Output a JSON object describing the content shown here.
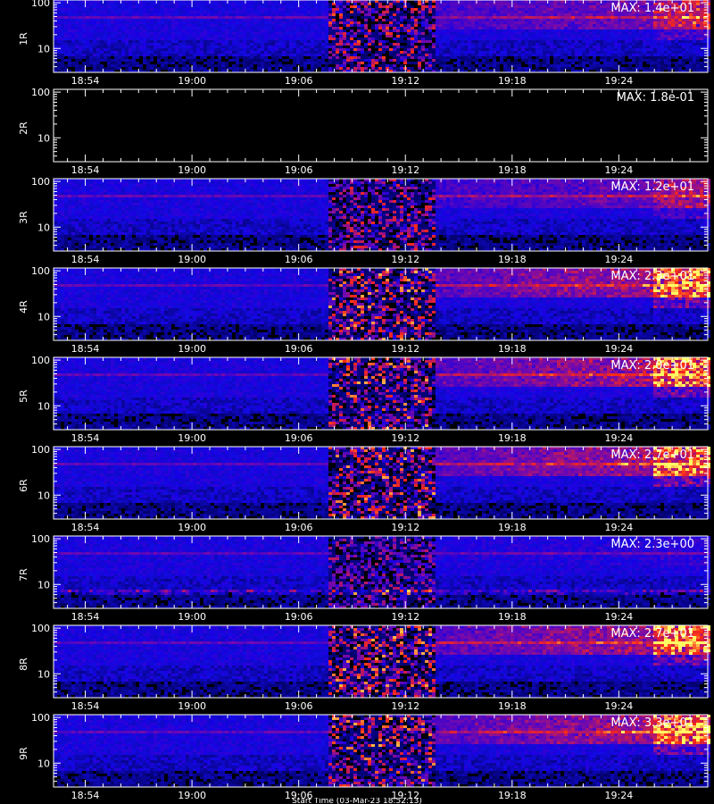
{
  "footer_text": "Start Time (03-Mar-23 18:52:13)",
  "chart_data": {
    "type": "heatmap",
    "x_range": [
      "18:52",
      "19:29"
    ],
    "x_ticks": [
      "18:54",
      "19:00",
      "19:06",
      "19:12",
      "19:18",
      "19:24"
    ],
    "y_scale": "log",
    "y_ticks": [
      "100",
      "10"
    ],
    "panels": [
      {
        "label": "1R",
        "max_label": "MAX: 1.4e+01",
        "max": 14,
        "empty": false
      },
      {
        "label": "2R",
        "max_label": "MAX: 1.8e-01",
        "max": 0.18,
        "empty": true
      },
      {
        "label": "3R",
        "max_label": "MAX: 1.2e+01",
        "max": 12,
        "empty": false
      },
      {
        "label": "4R",
        "max_label": "MAX: 2.3e+01",
        "max": 23,
        "empty": false
      },
      {
        "label": "5R",
        "max_label": "MAX: 2.0e+01",
        "max": 20,
        "empty": false
      },
      {
        "label": "6R",
        "max_label": "MAX: 2.7e+01",
        "max": 27,
        "empty": false
      },
      {
        "label": "7R",
        "max_label": "MAX: 2.3e+00",
        "max": 2.3,
        "empty": false
      },
      {
        "label": "8R",
        "max_label": "MAX: 2.7e+01",
        "max": 27,
        "empty": false
      },
      {
        "label": "9R",
        "max_label": "MAX: 3.3e+01",
        "max": 33,
        "empty": false
      }
    ]
  }
}
